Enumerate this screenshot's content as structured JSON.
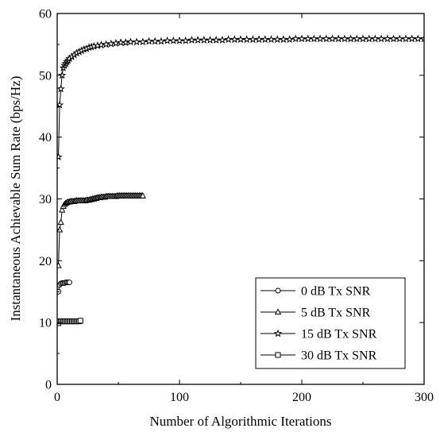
{
  "chart_data": {
    "type": "line",
    "title": "",
    "xlabel": "Number of Algorithmic Iterations",
    "ylabel": "Instantaneous Achievable Sum Rate (bps/Hz)",
    "xlim": [
      0,
      300
    ],
    "ylim": [
      0,
      60
    ],
    "xticks": [
      0,
      100,
      200,
      300
    ],
    "yticks": [
      0,
      10,
      20,
      30,
      40,
      50,
      60
    ],
    "grid": false,
    "legend_position": "bottom-right",
    "series": [
      {
        "name": "0 dB Tx SNR",
        "marker": "circle",
        "x": [
          1,
          2,
          3,
          4,
          5,
          6,
          7,
          8,
          9,
          10
        ],
        "y": [
          15.0,
          16.1,
          16.3,
          16.4,
          16.4,
          16.4,
          16.5,
          16.5,
          16.5,
          16.5
        ]
      },
      {
        "name": "5 dB Tx SNR",
        "marker": "triangle",
        "x": [
          1,
          2,
          3,
          4,
          5,
          6,
          7,
          8,
          9,
          10,
          11,
          12,
          13,
          14,
          15,
          16,
          17,
          18,
          19,
          20,
          21,
          22,
          23,
          24,
          25,
          26,
          27,
          28,
          29,
          30,
          31,
          32,
          33,
          34,
          35,
          36,
          37,
          38,
          39,
          40,
          41,
          42,
          43,
          44,
          45,
          46,
          47,
          48,
          49,
          50,
          51,
          52,
          53,
          54,
          55,
          56,
          57,
          58,
          59,
          60,
          61,
          62,
          63,
          64,
          65,
          66,
          67,
          68,
          69,
          70
        ],
        "y": [
          19.2,
          25.0,
          26.2,
          28.2,
          28.8,
          29.1,
          29.3,
          29.4,
          29.5,
          29.5,
          29.6,
          29.6,
          29.6,
          29.6,
          29.7,
          29.7,
          29.7,
          29.7,
          29.7,
          29.7,
          29.7,
          29.7,
          29.7,
          29.8,
          29.8,
          29.8,
          29.9,
          29.9,
          30.0,
          30.0,
          30.1,
          30.1,
          30.2,
          30.2,
          30.2,
          30.3,
          30.3,
          30.3,
          30.3,
          30.4,
          30.4,
          30.4,
          30.4,
          30.4,
          30.4,
          30.4,
          30.4,
          30.4,
          30.5,
          30.5,
          30.5,
          30.5,
          30.5,
          30.5,
          30.5,
          30.5,
          30.5,
          30.5,
          30.5,
          30.5,
          30.5,
          30.5,
          30.5,
          30.5,
          30.5,
          30.5,
          30.5,
          30.5,
          30.5,
          30.5
        ]
      },
      {
        "name": "15 dB Tx SNR",
        "marker": "star",
        "x": [
          1,
          2,
          3,
          4,
          5,
          6,
          7,
          8,
          9,
          10,
          12,
          14,
          16,
          18,
          20,
          22,
          24,
          26,
          28,
          30,
          33,
          36,
          40,
          44,
          48,
          52,
          56,
          60,
          65,
          70,
          75,
          80,
          85,
          90,
          95,
          100,
          105,
          110,
          115,
          120,
          125,
          130,
          135,
          140,
          145,
          150,
          155,
          160,
          165,
          170,
          175,
          180,
          185,
          190,
          195,
          200,
          205,
          210,
          215,
          220,
          225,
          230,
          235,
          240,
          245,
          250,
          255,
          260,
          265,
          270,
          275,
          280,
          285,
          290,
          295,
          300
        ],
        "y": [
          36.8,
          45.2,
          47.8,
          50.0,
          51.2,
          51.6,
          51.9,
          52.2,
          52.4,
          52.7,
          53.0,
          53.3,
          53.6,
          53.8,
          54.0,
          54.2,
          54.3,
          54.5,
          54.6,
          54.7,
          54.8,
          54.9,
          55.0,
          55.1,
          55.2,
          55.3,
          55.3,
          55.4,
          55.4,
          55.4,
          55.5,
          55.5,
          55.5,
          55.6,
          55.6,
          55.6,
          55.6,
          55.7,
          55.7,
          55.7,
          55.7,
          55.7,
          55.7,
          55.8,
          55.8,
          55.8,
          55.8,
          55.8,
          55.8,
          55.8,
          55.8,
          55.8,
          55.8,
          55.8,
          55.9,
          55.9,
          55.9,
          55.9,
          55.9,
          55.9,
          55.9,
          55.9,
          55.9,
          55.9,
          55.9,
          55.9,
          55.9,
          55.9,
          55.9,
          55.9,
          55.9,
          55.9,
          55.9,
          55.9,
          55.9,
          55.9
        ]
      },
      {
        "name": "30 dB Tx SNR",
        "marker": "square",
        "x": [
          1,
          2,
          3,
          4,
          5,
          6,
          7,
          8,
          9,
          10,
          11,
          12,
          13,
          14,
          15,
          16,
          17,
          18,
          19
        ],
        "y": [
          9.9,
          10.2,
          10.2,
          10.2,
          10.2,
          10.2,
          10.2,
          10.2,
          10.2,
          10.2,
          10.2,
          10.2,
          10.2,
          10.2,
          10.2,
          10.2,
          10.2,
          10.2,
          10.3
        ]
      }
    ]
  }
}
